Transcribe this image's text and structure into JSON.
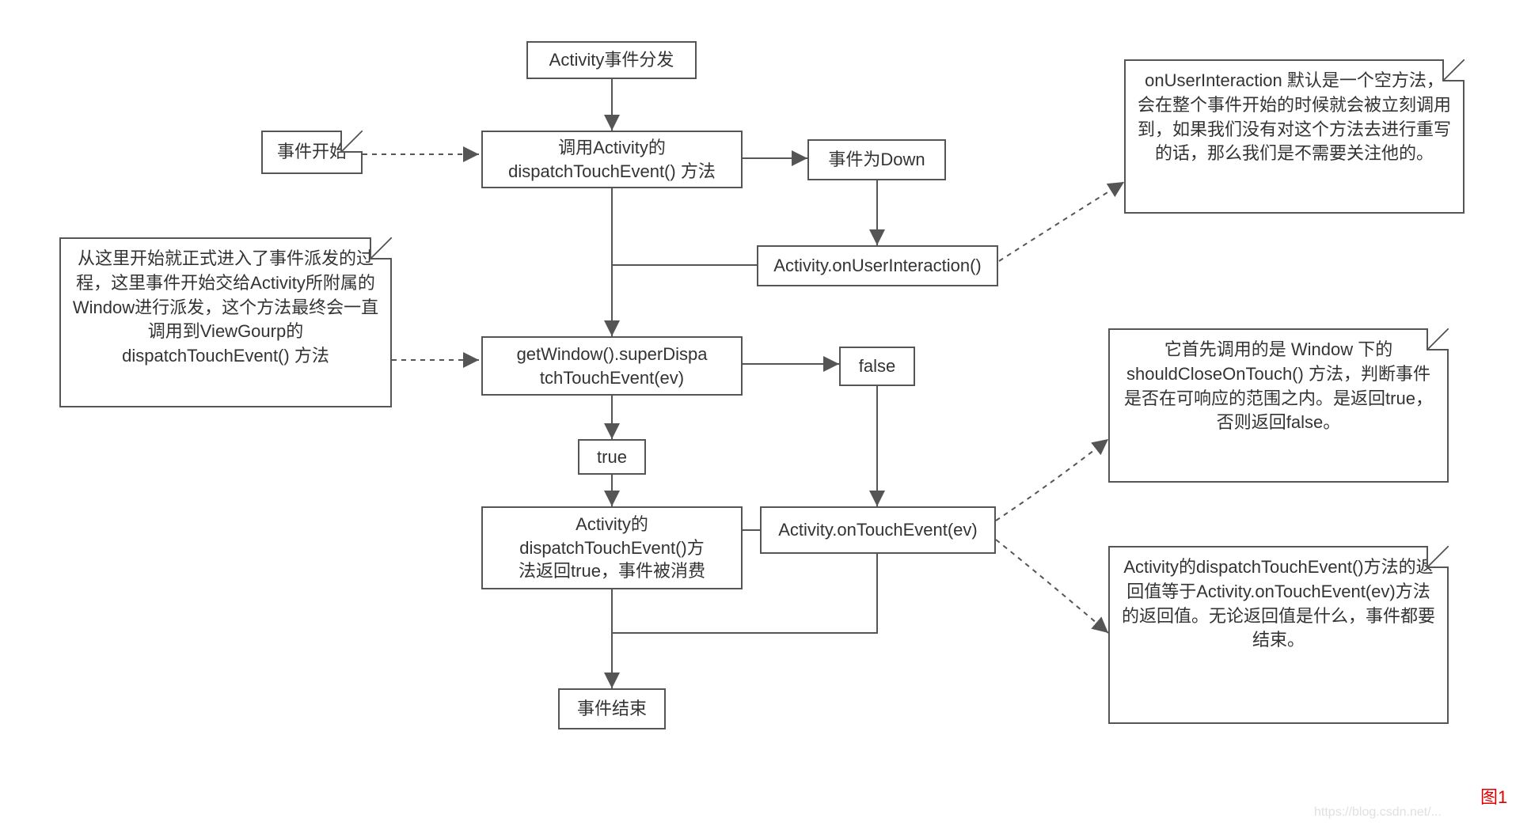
{
  "type": "flowchart",
  "background_color": "#ffffff",
  "stroke_color": "#555555",
  "text_color": "#333333",
  "font_family": "Microsoft YaHei",
  "base_fontsize": 22,
  "nodes": {
    "n_start": {
      "text": "Activity事件分发"
    },
    "n_dispatch": {
      "text": "调用Activity的\ndispatchTouchEvent() 方法"
    },
    "n_down": {
      "text": "事件为Down"
    },
    "n_userint": {
      "text": "Activity.onUserInteraction()"
    },
    "n_getwin": {
      "text": "getWindow().superDispa\ntchTouchEvent(ev)"
    },
    "n_true": {
      "text": "true"
    },
    "n_false": {
      "text": "false"
    },
    "n_consumed": {
      "text": "Activity的\ndispatchTouchEvent()方\n法返回true，事件被消费"
    },
    "n_ontouch": {
      "text": "Activity.onTouchEvent(ev)"
    },
    "n_end": {
      "text": "事件结束"
    }
  },
  "notes": {
    "note_begin": {
      "text": "事件开始"
    },
    "note_window": {
      "text": "从这里开始就正式进入了事件派发的过程，这里事件开始交给Activity所附属的Window进行派发，这个方法最终会一直调用到ViewGourp的dispatchTouchEvent() 方法"
    },
    "note_userint": {
      "text": "onUserInteraction 默认是一个空方法，会在整个事件开始的时候就会被立刻调用到，如果我们没有对这个方法去进行重写的话，那么我们是不需要关注他的。"
    },
    "note_should": {
      "text": "它首先调用的是 Window 下的 shouldCloseOnTouch() 方法，判断事件是否在可响应的范围之内。是返回true，否则返回false。"
    },
    "note_return": {
      "text": "Activity的dispatchTouchEvent()方法的返回值等于Activity.onTouchEvent(ev)方法的返回值。无论返回值是什么，事件都要结束。"
    }
  },
  "figure_label": "图1",
  "figure_label_color": "#d00000",
  "watermark": "https://blog.csdn.net/..."
}
